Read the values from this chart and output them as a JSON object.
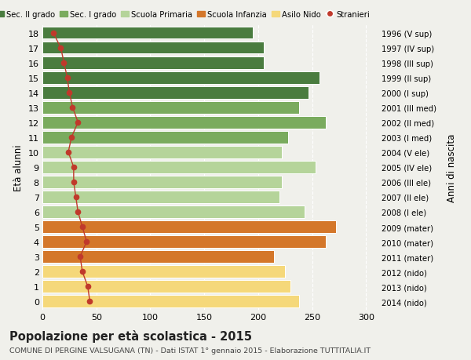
{
  "ages": [
    18,
    17,
    16,
    15,
    14,
    13,
    12,
    11,
    10,
    9,
    8,
    7,
    6,
    5,
    4,
    3,
    2,
    1,
    0
  ],
  "bar_values": [
    195,
    205,
    205,
    257,
    247,
    238,
    263,
    228,
    222,
    253,
    222,
    220,
    243,
    272,
    263,
    215,
    225,
    230,
    238
  ],
  "stranieri_values": [
    10,
    17,
    20,
    23,
    25,
    28,
    33,
    27,
    24,
    29,
    29,
    31,
    33,
    37,
    41,
    35,
    37,
    42,
    44
  ],
  "right_labels": [
    "1996 (V sup)",
    "1997 (IV sup)",
    "1998 (III sup)",
    "1999 (II sup)",
    "2000 (I sup)",
    "2001 (III med)",
    "2002 (II med)",
    "2003 (I med)",
    "2004 (V ele)",
    "2005 (IV ele)",
    "2006 (III ele)",
    "2007 (II ele)",
    "2008 (I ele)",
    "2009 (mater)",
    "2010 (mater)",
    "2011 (mater)",
    "2012 (nido)",
    "2013 (nido)",
    "2014 (nido)"
  ],
  "colors_map": [
    "#4a7c3f",
    "#4a7c3f",
    "#4a7c3f",
    "#4a7c3f",
    "#4a7c3f",
    "#7aab5e",
    "#7aab5e",
    "#7aab5e",
    "#b5d49a",
    "#b5d49a",
    "#b5d49a",
    "#b5d49a",
    "#b5d49a",
    "#d4772a",
    "#d4772a",
    "#d4772a",
    "#f5d87a",
    "#f5d87a",
    "#f5d87a"
  ],
  "stranieri_color": "#c0392b",
  "legend_labels": [
    "Sec. II grado",
    "Sec. I grado",
    "Scuola Primaria",
    "Scuola Infanzia",
    "Asilo Nido",
    "Stranieri"
  ],
  "legend_colors": [
    "#4a7c3f",
    "#7aab5e",
    "#b5d49a",
    "#d4772a",
    "#f5d87a",
    "#c0392b"
  ],
  "title": "Popolazione per età scolastica - 2015",
  "subtitle": "COMUNE DI PERGINE VALSUGANA (TN) - Dati ISTAT 1° gennaio 2015 - Elaborazione TUTTITALIA.IT",
  "ylabel_left": "Età alunni",
  "ylabel_right": "Anni di nascita",
  "xlim": [
    0,
    310
  ],
  "xticks": [
    0,
    50,
    100,
    150,
    200,
    250,
    300
  ],
  "bg_color": "#f0f0eb",
  "grid_color": "#ffffff",
  "bar_edgecolor": "#ffffff",
  "bar_height": 0.82
}
